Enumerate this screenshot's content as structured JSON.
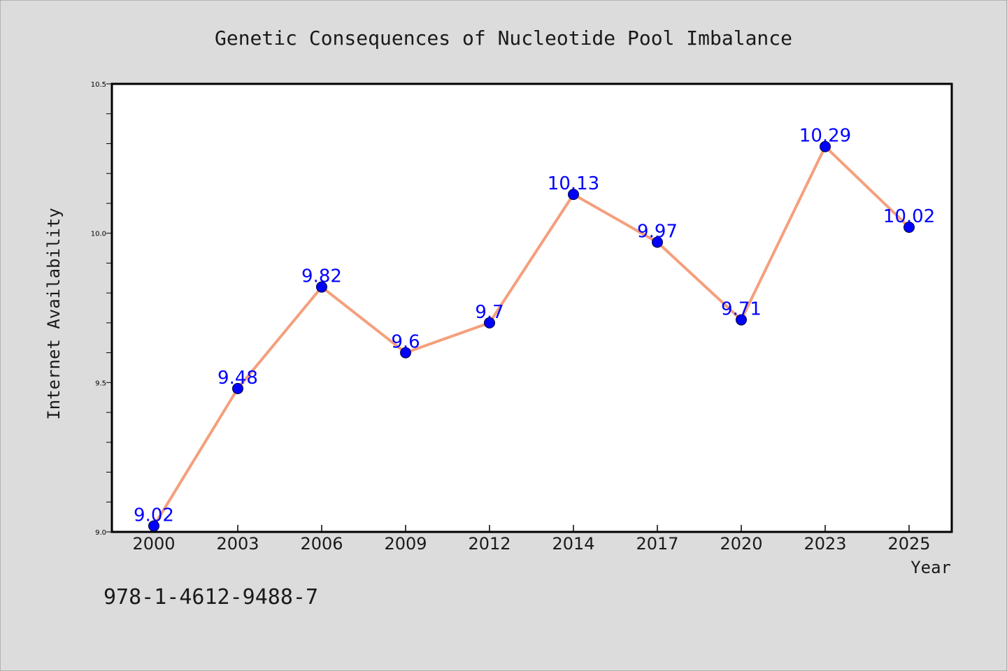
{
  "chart_data": {
    "type": "line",
    "title": "Genetic Consequences of Nucleotide Pool Imbalance",
    "xlabel": "Year",
    "ylabel": "Internet Availability",
    "categories": [
      "2000",
      "2003",
      "2006",
      "2009",
      "2012",
      "2014",
      "2017",
      "2020",
      "2023",
      "2025"
    ],
    "series": [
      {
        "values": [
          9.02,
          9.48,
          9.82,
          9.6,
          9.7,
          10.13,
          9.97,
          9.71,
          10.29,
          10.02
        ],
        "labels": [
          "9.02",
          "9.48",
          "9.82",
          "9.6",
          "9.7",
          "10.13",
          "9.97",
          "9.71",
          "10.29",
          "10.02"
        ]
      }
    ],
    "ylim": [
      9.0,
      10.5
    ],
    "yticks": [
      9.0,
      9.5,
      10.0,
      10.5
    ],
    "ytick_labels": [
      "9.0",
      "9.5",
      "10.0",
      "10.5"
    ],
    "grid": false,
    "legend": "none",
    "annotation": "978-1-4612-9488-7",
    "colors": {
      "background": "#dcdcdc",
      "plot_area": "#ffffff",
      "line": "#f4a07c",
      "marker": "#0000ff",
      "data_label": "#0000ff",
      "text": "#1a1a1a"
    }
  }
}
